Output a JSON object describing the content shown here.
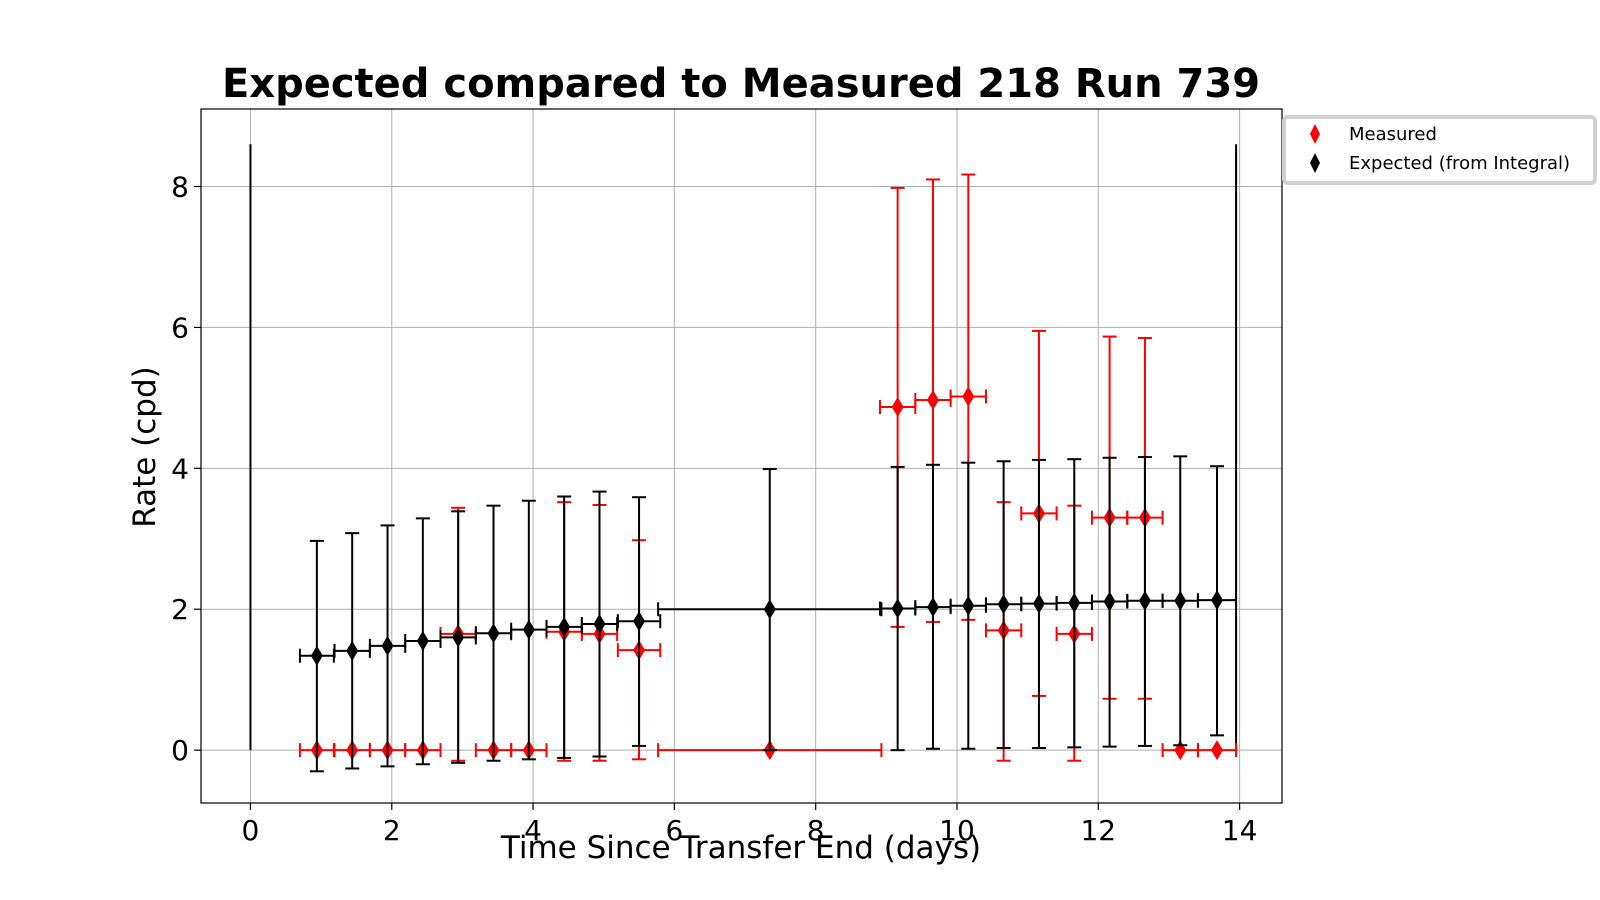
{
  "chart_data": {
    "type": "scatter",
    "title": "Expected compared to Measured 218 Run 739",
    "xlabel": "Time Since Transfer End (days)",
    "ylabel": "Rate (cpd)",
    "xlim": [
      -0.7,
      14.6
    ],
    "ylim": [
      -0.75,
      9.1
    ],
    "xticks": [
      0,
      2,
      4,
      6,
      8,
      10,
      12,
      14
    ],
    "yticks": [
      0,
      2,
      4,
      6,
      8
    ],
    "grid": true,
    "legend_position": "outside top-right",
    "colors": {
      "measured": "#ff0000",
      "expected": "#000000",
      "grid": "#b0b0b0"
    },
    "vertical_lines": [
      0,
      13.95
    ],
    "vertical_line_top": 8.6,
    "series": [
      {
        "name": "Measured",
        "color": "#ff0000",
        "marker": "diamond",
        "points": [
          {
            "x": 0.94,
            "y": 0,
            "xerr": 0.24,
            "ylo": 0,
            "yhi": 0
          },
          {
            "x": 1.44,
            "y": 0,
            "xerr": 0.25,
            "ylo": 0,
            "yhi": 0
          },
          {
            "x": 1.94,
            "y": 0,
            "xerr": 0.25,
            "ylo": 0,
            "yhi": 0
          },
          {
            "x": 2.44,
            "y": 0,
            "xerr": 0.25,
            "ylo": 0,
            "yhi": 0
          },
          {
            "x": 2.94,
            "y": 1.65,
            "xerr": 0.25,
            "ylo": -0.15,
            "yhi": 3.44
          },
          {
            "x": 3.44,
            "y": 0,
            "xerr": 0.25,
            "ylo": 0,
            "yhi": 0
          },
          {
            "x": 3.94,
            "y": 0,
            "xerr": 0.25,
            "ylo": 0,
            "yhi": 0
          },
          {
            "x": 4.44,
            "y": 1.68,
            "xerr": 0.25,
            "ylo": -0.15,
            "yhi": 3.52
          },
          {
            "x": 4.94,
            "y": 1.65,
            "xerr": 0.25,
            "ylo": -0.15,
            "yhi": 3.48
          },
          {
            "x": 5.5,
            "y": 1.42,
            "xerr": 0.3,
            "ylo": -0.13,
            "yhi": 2.98
          },
          {
            "x": 7.35,
            "y": 0,
            "xerr": 1.58,
            "ylo": 0,
            "yhi": 0
          },
          {
            "x": 9.16,
            "y": 4.87,
            "xerr": 0.25,
            "ylo": 1.75,
            "yhi": 7.98
          },
          {
            "x": 9.66,
            "y": 4.97,
            "xerr": 0.25,
            "ylo": 1.82,
            "yhi": 8.1
          },
          {
            "x": 10.16,
            "y": 5.02,
            "xerr": 0.25,
            "ylo": 1.85,
            "yhi": 8.17
          },
          {
            "x": 10.66,
            "y": 1.7,
            "xerr": 0.25,
            "ylo": -0.15,
            "yhi": 3.52
          },
          {
            "x": 11.16,
            "y": 3.36,
            "xerr": 0.25,
            "ylo": 0.77,
            "yhi": 5.95
          },
          {
            "x": 11.66,
            "y": 1.65,
            "xerr": 0.25,
            "ylo": -0.15,
            "yhi": 3.47
          },
          {
            "x": 12.16,
            "y": 3.3,
            "xerr": 0.25,
            "ylo": 0.73,
            "yhi": 5.87
          },
          {
            "x": 12.66,
            "y": 3.3,
            "xerr": 0.25,
            "ylo": 0.73,
            "yhi": 5.85
          },
          {
            "x": 13.16,
            "y": 0,
            "xerr": 0.25,
            "ylo": 0,
            "yhi": 0
          },
          {
            "x": 13.68,
            "y": 0,
            "xerr": 0.27,
            "ylo": 0,
            "yhi": 0
          }
        ]
      },
      {
        "name": "Expected (from Integral)",
        "color": "#000000",
        "marker": "diamond",
        "points": [
          {
            "x": 0.94,
            "y": 1.34,
            "xerr": 0.24,
            "ylo": -0.3,
            "yhi": 2.97
          },
          {
            "x": 1.44,
            "y": 1.41,
            "xerr": 0.25,
            "ylo": -0.26,
            "yhi": 3.08
          },
          {
            "x": 1.94,
            "y": 1.48,
            "xerr": 0.25,
            "ylo": -0.23,
            "yhi": 3.19
          },
          {
            "x": 2.44,
            "y": 1.55,
            "xerr": 0.25,
            "ylo": -0.2,
            "yhi": 3.29
          },
          {
            "x": 2.94,
            "y": 1.6,
            "xerr": 0.25,
            "ylo": -0.18,
            "yhi": 3.39
          },
          {
            "x": 3.44,
            "y": 1.66,
            "xerr": 0.25,
            "ylo": -0.15,
            "yhi": 3.47
          },
          {
            "x": 3.94,
            "y": 1.71,
            "xerr": 0.25,
            "ylo": -0.13,
            "yhi": 3.54
          },
          {
            "x": 4.44,
            "y": 1.75,
            "xerr": 0.25,
            "ylo": -0.11,
            "yhi": 3.6
          },
          {
            "x": 4.94,
            "y": 1.79,
            "xerr": 0.25,
            "ylo": -0.09,
            "yhi": 3.67
          },
          {
            "x": 5.5,
            "y": 1.83,
            "xerr": 0.3,
            "ylo": 0.06,
            "yhi": 3.59
          },
          {
            "x": 7.35,
            "y": 2.0,
            "xerr": 1.58,
            "ylo": 0.0,
            "yhi": 3.99
          },
          {
            "x": 9.16,
            "y": 2.01,
            "xerr": 0.25,
            "ylo": 0.0,
            "yhi": 4.02
          },
          {
            "x": 9.66,
            "y": 2.03,
            "xerr": 0.25,
            "ylo": 0.02,
            "yhi": 4.05
          },
          {
            "x": 10.16,
            "y": 2.05,
            "xerr": 0.25,
            "ylo": 0.02,
            "yhi": 4.08
          },
          {
            "x": 10.66,
            "y": 2.07,
            "xerr": 0.25,
            "ylo": 0.03,
            "yhi": 4.1
          },
          {
            "x": 11.16,
            "y": 2.08,
            "xerr": 0.25,
            "ylo": 0.03,
            "yhi": 4.12
          },
          {
            "x": 11.66,
            "y": 2.09,
            "xerr": 0.25,
            "ylo": 0.04,
            "yhi": 4.13
          },
          {
            "x": 12.16,
            "y": 2.11,
            "xerr": 0.25,
            "ylo": 0.05,
            "yhi": 4.15
          },
          {
            "x": 12.66,
            "y": 2.12,
            "xerr": 0.25,
            "ylo": 0.06,
            "yhi": 4.16
          },
          {
            "x": 13.16,
            "y": 2.12,
            "xerr": 0.25,
            "ylo": 0.07,
            "yhi": 4.17
          },
          {
            "x": 13.68,
            "y": 2.13,
            "xerr": 0.27,
            "ylo": 0.21,
            "yhi": 4.03
          }
        ]
      }
    ]
  }
}
